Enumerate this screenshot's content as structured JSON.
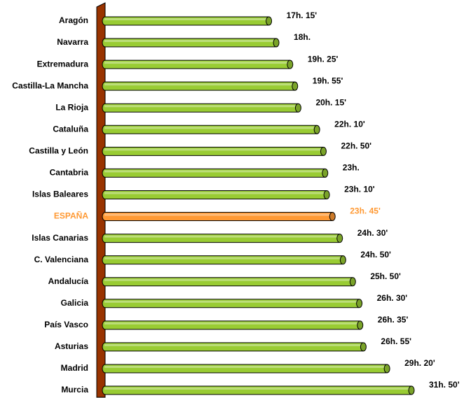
{
  "chart_data": {
    "type": "bar",
    "orientation": "horizontal",
    "categories": [
      "Aragón",
      "Navarra",
      "Extremadura",
      "Castilla-La Mancha",
      "La Rioja",
      "Cataluña",
      "Castilla y León",
      "Cantabria",
      "Islas Baleares",
      "ESPAÑA",
      "Islas Canarias",
      "C. Valenciana",
      "Andalucía",
      "Galicia",
      "País Vasco",
      "Asturias",
      "Madrid",
      "Murcia"
    ],
    "values": [
      17.25,
      18,
      19.4167,
      19.9167,
      20.25,
      22.1667,
      22.8333,
      23,
      23.1667,
      23.75,
      24.5,
      24.8333,
      25.8333,
      26.5,
      26.5833,
      26.9167,
      29.3333,
      31.8333
    ],
    "value_labels": [
      "17h. 15'",
      "18h.",
      "19h. 25'",
      "19h. 55'",
      "20h. 15'",
      "22h. 10'",
      "22h. 50'",
      "23h.",
      "23h. 10'",
      "23h. 45'",
      "24h. 30'",
      "24h. 50'",
      "25h. 50'",
      "26h. 30'",
      "26h. 35'",
      "26h. 55'",
      "29h. 20'",
      "31h. 50'"
    ],
    "colors": [
      "#99cc33",
      "#99cc33",
      "#99cc33",
      "#99cc33",
      "#99cc33",
      "#99cc33",
      "#99cc33",
      "#99cc33",
      "#99cc33",
      "#ff9933",
      "#99cc33",
      "#99cc33",
      "#99cc33",
      "#99cc33",
      "#99cc33",
      "#99cc33",
      "#99cc33",
      "#99cc33"
    ]
  }
}
